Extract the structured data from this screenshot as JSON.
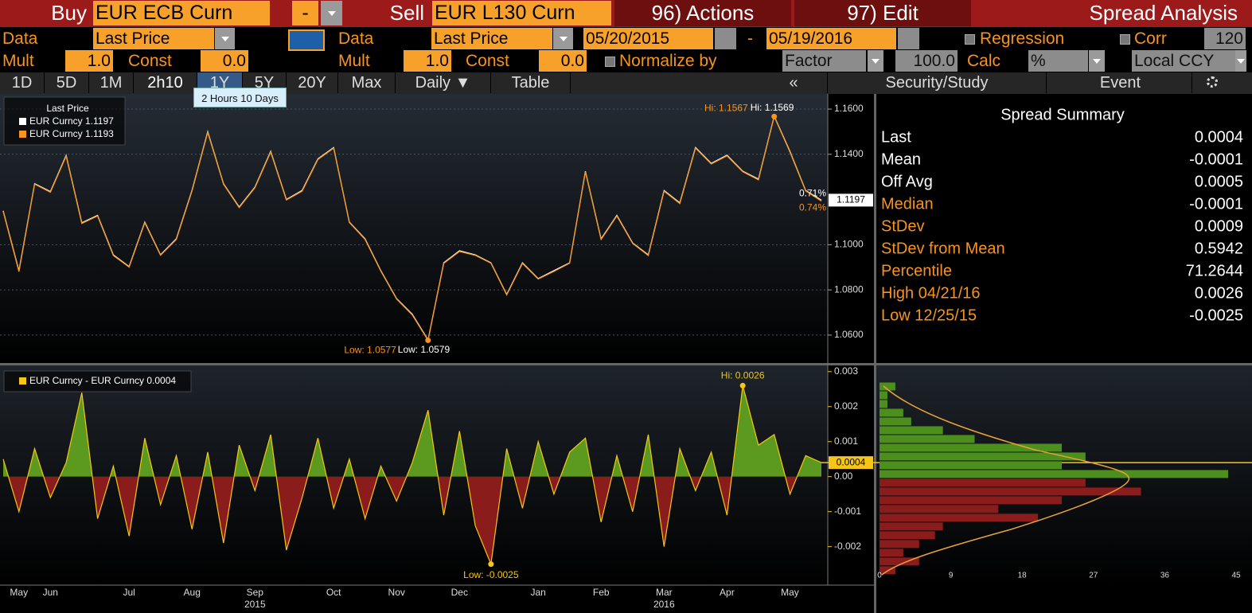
{
  "toolbar": {
    "row1": {
      "buy": "Buy",
      "buy_ticker": "EUR ECB  Curn",
      "minus": "-",
      "sell": "Sell",
      "sell_ticker": "EUR L130 Curn",
      "actions": "96) Actions",
      "edit": "97) Edit",
      "title": "Spread Analysis"
    },
    "row2": {
      "data_label_1": "Data",
      "data_value_1": "Last Price",
      "data_label_2": "Data",
      "data_value_2": "Last Price",
      "start_date": "05/20/2015",
      "date_sep": "-",
      "end_date": "05/19/2016",
      "regression": "Regression",
      "corr": "Corr",
      "corr_value": "120"
    },
    "row3": {
      "mult_label_1": "Mult",
      "mult_value_1": "1.0",
      "const_label_1": "Const",
      "const_value_1": "0.0",
      "mult_label_2": "Mult",
      "mult_value_2": "1.0",
      "const_label_2": "Const",
      "const_value_2": "0.0",
      "normalize": "Normalize by",
      "factor": "Factor",
      "factor_value": "100.0",
      "calc": "Calc",
      "calc_value": "%",
      "currency": "Local CCY"
    },
    "tabs": [
      "1D",
      "5D",
      "1M",
      "2h10",
      "1Y",
      "5Y",
      "20Y",
      "Max",
      "Daily ▼",
      "Table"
    ],
    "right_tabs": [
      "«",
      "Security/Study",
      "Event"
    ],
    "tooltip": "2 Hours 10 Days"
  },
  "chart_data": [
    {
      "type": "line",
      "legend_title": "Last Price",
      "ylim": [
        1.048,
        1.1667
      ],
      "yticks": [
        {
          "value": 1.06,
          "label": "1.0600"
        },
        {
          "value": 1.08,
          "label": "1.0800"
        },
        {
          "value": 1.1,
          "label": "1.1000"
        },
        {
          "value": 1.14,
          "label": "1.1400"
        },
        {
          "value": 1.16,
          "label": "1.1600"
        }
      ],
      "grid": true,
      "series": [
        {
          "name": "EUR Curncy 1.1197",
          "color": "#ffffff",
          "high_label": "Hi: 1.1569",
          "low_label": "Low: 1.0579",
          "change_label": "0.71%",
          "last_label": "1.1197",
          "values": [
            1.115,
            1.0885,
            1.127,
            1.1235,
            1.1395,
            1.1097,
            1.113,
            1.0955,
            1.0903,
            1.11,
            1.0955,
            1.1026,
            1.124,
            1.15,
            1.127,
            1.1167,
            1.1255,
            1.1413,
            1.12,
            1.124,
            1.138,
            1.143,
            1.11,
            1.1026,
            1.0885,
            1.0762,
            1.0692,
            1.0579,
            1.092,
            1.0973,
            1.0955,
            1.092,
            1.078,
            1.092,
            1.085,
            1.0885,
            1.092,
            1.1325,
            1.1026,
            1.113,
            1.1008,
            1.0955,
            1.124,
            1.1185,
            1.143,
            1.136,
            1.1396,
            1.1325,
            1.129,
            1.1569,
            1.1413,
            1.124,
            1.1197
          ]
        },
        {
          "name": "EUR Curncy 1.1193",
          "color": "#f7941d",
          "high_label": "Hi: 1.1567",
          "low_label": "Low: 1.0577",
          "change_label": "0.74%",
          "values": [
            1.1147,
            1.0881,
            1.1268,
            1.1232,
            1.1392,
            1.1094,
            1.1127,
            1.0952,
            1.0901,
            1.1097,
            1.0953,
            1.1023,
            1.1237,
            1.1497,
            1.1268,
            1.1164,
            1.1252,
            1.141,
            1.1198,
            1.1237,
            1.1377,
            1.1427,
            1.1098,
            1.1023,
            1.0883,
            1.076,
            1.0689,
            1.0577,
            1.0917,
            1.097,
            1.0953,
            1.0918,
            1.0778,
            1.0917,
            1.0848,
            1.0882,
            1.0918,
            1.1322,
            1.1023,
            1.1127,
            1.1006,
            1.0952,
            1.1237,
            1.1182,
            1.1427,
            1.1357,
            1.1393,
            1.1323,
            1.1287,
            1.1567,
            1.141,
            1.1238,
            1.1193
          ]
        }
      ]
    },
    {
      "type": "area",
      "categories": [
        null,
        "May",
        null,
        "Jun",
        null,
        null,
        null,
        null,
        "Jul",
        null,
        null,
        null,
        "Aug",
        null,
        null,
        null,
        "Sep",
        null,
        null,
        null,
        null,
        "Oct",
        null,
        null,
        null,
        "Nov",
        null,
        null,
        null,
        "Dec",
        null,
        null,
        null,
        null,
        "Jan",
        null,
        null,
        null,
        "Feb",
        null,
        null,
        null,
        "Mar",
        null,
        null,
        null,
        "Apr",
        null,
        null,
        null,
        "May",
        null,
        null
      ],
      "year_categories": [
        null,
        null,
        null,
        null,
        null,
        null,
        null,
        null,
        null,
        null,
        null,
        null,
        null,
        null,
        null,
        null,
        "2015",
        null,
        null,
        null,
        null,
        null,
        null,
        null,
        null,
        null,
        null,
        null,
        null,
        null,
        null,
        null,
        null,
        null,
        null,
        null,
        null,
        null,
        null,
        null,
        null,
        null,
        "2016",
        null,
        null,
        null,
        null,
        null,
        null,
        null,
        null,
        null,
        null
      ],
      "ylim": [
        -0.0031,
        0.0032
      ],
      "yticks": [
        -0.002,
        -0.001,
        {
          "value": 0,
          "label": "0.00"
        },
        0.001,
        0.002,
        0.003
      ],
      "grid": false,
      "positive_color": "#5b9a1e",
      "negative_color": "#8b1c1c",
      "series": [
        {
          "name": "EUR Curncy - EUR Curncy 0.0004",
          "color": "#f5c518",
          "high_label": "Hi: 0.0026",
          "low_label": "Low: -0.0025",
          "last_label": "0.0004",
          "values": [
            0.0005,
            -0.001,
            0.0008,
            -0.0006,
            0.0004,
            0.0024,
            -0.0012,
            0.0003,
            -0.0017,
            0.0011,
            -0.0008,
            0.0006,
            -0.0015,
            0.0007,
            -0.0019,
            0.0009,
            -0.0004,
            0.0012,
            -0.0021,
            -0.0006,
            0.0011,
            -0.0009,
            0.0005,
            -0.0012,
            0.0003,
            -0.0007,
            0.0004,
            0.0019,
            -0.0011,
            0.0013,
            -0.0014,
            -0.0025,
            0.0008,
            -0.0009,
            0.001,
            -0.0005,
            0.0007,
            0.0011,
            -0.0013,
            0.0006,
            -0.001,
            0.0012,
            -0.002,
            0.0008,
            -0.0004,
            0.0007,
            -0.0011,
            0.0026,
            0.0009,
            0.0012,
            -0.0005,
            0.0006,
            0.0004
          ]
        }
      ]
    },
    {
      "type": "histogram",
      "orientation": "horizontal",
      "xlim": [
        0,
        45
      ],
      "xticks": [
        0,
        9,
        18,
        27,
        36,
        45
      ],
      "positive_color": "#4d8f1c",
      "negative_color": "#8b1c1c",
      "bins": [
        -0.0028,
        -0.00255,
        -0.0023,
        -0.00205,
        -0.0018,
        -0.00155,
        -0.0013,
        -0.00105,
        -0.0008,
        -0.00055,
        -0.0003,
        -5e-05,
        0.0002,
        0.00045,
        0.0007,
        0.00095,
        0.0012,
        0.00145,
        0.0017,
        0.00195,
        0.0022,
        0.00245,
        0.0027
      ],
      "values": [
        2,
        5,
        3,
        5,
        7,
        8,
        20,
        15,
        23,
        33,
        26,
        44,
        23,
        26,
        23,
        12,
        8,
        4,
        3,
        1,
        1,
        2
      ]
    }
  ],
  "summary": {
    "title": "Spread Summary",
    "rows": [
      {
        "label": "Last",
        "value": "0.0004",
        "label_color": "#ffffff"
      },
      {
        "label": "Mean",
        "value": "-0.0001",
        "label_color": "#ffffff"
      },
      {
        "label": "Off Avg",
        "value": "0.0005",
        "label_color": "#ffffff"
      },
      {
        "label": "Median",
        "value": "-0.0001",
        "label_color": "#f7941d"
      },
      {
        "label": "StDev",
        "value": "0.0009",
        "label_color": "#f7941d"
      },
      {
        "label": "StDev from Mean",
        "value": "0.5942",
        "label_color": "#f7941d"
      },
      {
        "label": "Percentile",
        "value": "71.2644",
        "label_color": "#f7941d"
      },
      {
        "label": "High 04/21/16",
        "value": "0.0026",
        "label_color": "#f7941d"
      },
      {
        "label": "Low 12/25/15",
        "value": "-0.0025",
        "label_color": "#f7941d"
      }
    ]
  }
}
